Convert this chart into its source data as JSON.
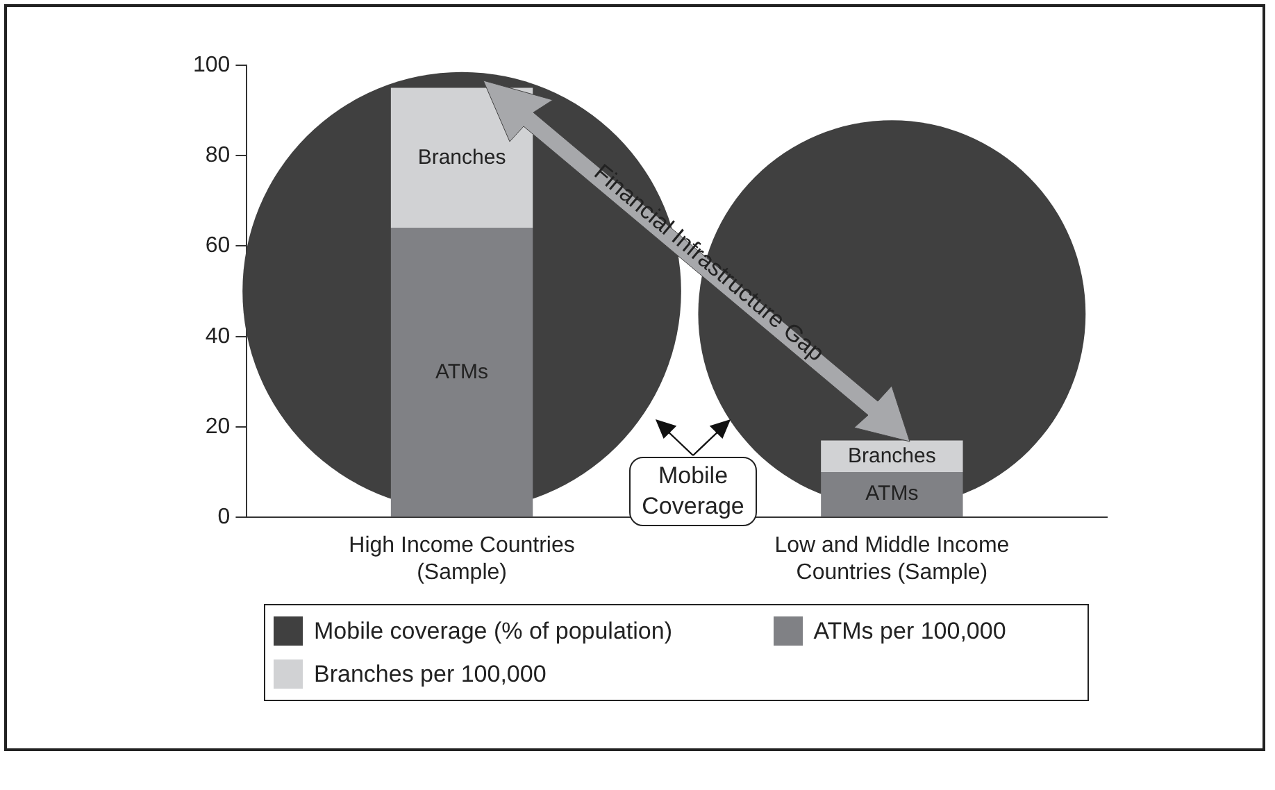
{
  "chart_data": {
    "type": "bar",
    "stacked": true,
    "categories": [
      "High Income Countries (Sample)",
      "Low and Middle Income Countries (Sample)"
    ],
    "series": [
      {
        "name": "Mobile coverage (% of population)",
        "type": "bubble",
        "color": "#404040",
        "values": [
          50,
          45
        ],
        "sizes": [
          1,
          0.78
        ]
      },
      {
        "name": "ATMs per 100,000",
        "color": "#808185",
        "values": [
          64,
          10
        ]
      },
      {
        "name": "Branches per 100,000",
        "color": "#d1d2d4",
        "values": [
          31,
          7
        ]
      }
    ],
    "ylim": [
      0,
      100
    ],
    "yticks": [
      0,
      20,
      40,
      60,
      80,
      100
    ],
    "grid": false,
    "legend": "bottom",
    "annotations": [
      "ATMs",
      "Branches",
      "ATMs",
      "Branches",
      "Financial Infrastructure Gap",
      "Mobile Coverage"
    ]
  }
}
